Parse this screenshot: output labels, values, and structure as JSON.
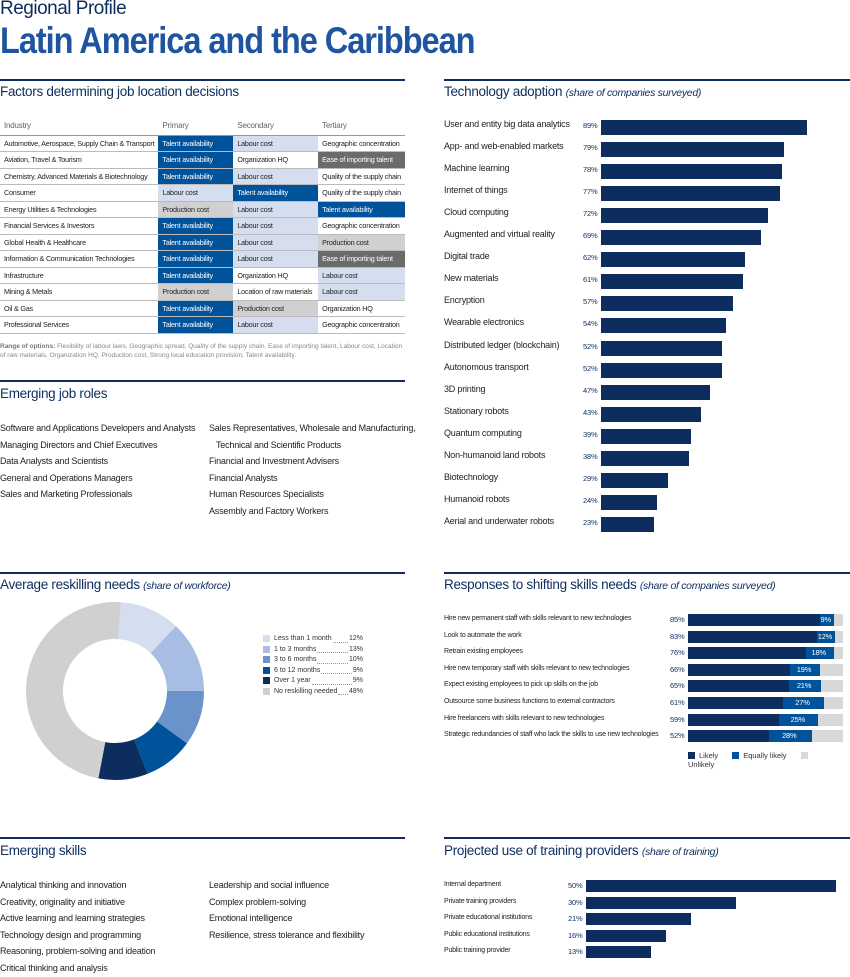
{
  "header": {
    "kicker": "Regional Profile",
    "title": "Latin America and the Caribbean"
  },
  "colors": {
    "navy": "#0d2d5e",
    "blue": "#00529b",
    "light": "#d4deef",
    "gray": "#d0d0d0",
    "dark_gray": "#6b6b6b"
  },
  "factors": {
    "title": "Factors determining job location decisions",
    "columns": [
      "Industry",
      "Primary",
      "Secondary",
      "Tertiary"
    ],
    "rows": [
      {
        "industry": "Automotive, Aerospace, Supply Chain & Transport",
        "primary": "Talent availability",
        "secondary": "Labour cost",
        "tertiary": "Geographic concentration",
        "colors": [
          "blue",
          "light",
          "none"
        ]
      },
      {
        "industry": "Aviation, Travel & Tourism",
        "primary": "Talent availability",
        "secondary": "Organization HQ",
        "tertiary": "Ease of importing talent",
        "colors": [
          "blue",
          "none",
          "dark"
        ]
      },
      {
        "industry": "Chemistry, Advanced Materials & Biotechnology",
        "primary": "Talent availability",
        "secondary": "Labour cost",
        "tertiary": "Quality of the supply chain",
        "colors": [
          "blue",
          "light",
          "none"
        ]
      },
      {
        "industry": "Consumer",
        "primary": "Labour cost",
        "secondary": "Talent availability",
        "tertiary": "Quality of the supply chain",
        "colors": [
          "light",
          "blue",
          "none"
        ]
      },
      {
        "industry": "Energy Utilities & Technologies",
        "primary": "Production cost",
        "secondary": "Labour cost",
        "tertiary": "Talent availability",
        "colors": [
          "gray",
          "light",
          "blue"
        ]
      },
      {
        "industry": "Financial Services & Investors",
        "primary": "Talent availability",
        "secondary": "Labour cost",
        "tertiary": "Geographic concentration",
        "colors": [
          "blue",
          "light",
          "none"
        ]
      },
      {
        "industry": "Global Health & Healthcare",
        "primary": "Talent availability",
        "secondary": "Labour cost",
        "tertiary": "Production cost",
        "colors": [
          "blue",
          "light",
          "gray"
        ]
      },
      {
        "industry": "Information & Communication Technologies",
        "primary": "Talent availability",
        "secondary": "Labour cost",
        "tertiary": "Ease of importing talent",
        "colors": [
          "blue",
          "light",
          "dark"
        ]
      },
      {
        "industry": "Infrastructure",
        "primary": "Talent availability",
        "secondary": "Organization HQ",
        "tertiary": "Labour cost",
        "colors": [
          "blue",
          "none",
          "light"
        ]
      },
      {
        "industry": "Mining & Metals",
        "primary": "Production cost",
        "secondary": "Location of raw materials",
        "tertiary": "Labour cost",
        "colors": [
          "gray",
          "none",
          "light"
        ]
      },
      {
        "industry": "Oil & Gas",
        "primary": "Talent availability",
        "secondary": "Production cost",
        "tertiary": "Organization HQ",
        "colors": [
          "blue",
          "gray",
          "none"
        ]
      },
      {
        "industry": "Professional Services",
        "primary": "Talent availability",
        "secondary": "Labour cost",
        "tertiary": "Geographic concentration",
        "colors": [
          "blue",
          "light",
          "none"
        ]
      }
    ],
    "note_label": "Range of options:",
    "note": "Flexibility of labour laws, Geographic spread, Quality of the supply chain, Ease of importing talent, Labour cost, Location of raw materials, Organization HQ, Production cost, Strong local education provision, Talent availability."
  },
  "roles": {
    "title": "Emerging job roles",
    "col1": [
      "Software and Applications Developers and Analysts",
      "Managing Directors and Chief Executives",
      "Data Analysts and Scientists",
      "General and Operations Managers",
      "Sales and Marketing Professionals"
    ],
    "col2": [
      "Sales Representatives, Wholesale and Manufacturing,",
      "Technical and Scientific Products",
      "Financial and Investment Advisers",
      "Financial Analysts",
      "Human Resources Specialists",
      "Assembly and Factory Workers"
    ]
  },
  "skills": {
    "title": "Emerging skills",
    "col1": [
      "Analytical thinking and innovation",
      "Creativity, originality and initiative",
      "Active learning and learning strategies",
      "Technology design and programming",
      "Reasoning, problem-solving and ideation",
      "Critical thinking and analysis"
    ],
    "col2": [
      "Leadership and social influence",
      "Complex problem-solving",
      "Emotional intelligence",
      "Resilience, stress tolerance and flexibility"
    ]
  },
  "chart_data": [
    {
      "type": "bar",
      "title": "Technology adoption",
      "subtitle": "(share of companies surveyed)",
      "unit": "%",
      "categories": [
        "User and entity big data analytics",
        "App- and web-enabled markets",
        "Machine learning",
        "Internet of things",
        "Cloud computing",
        "Augmented and virtual reality",
        "Digital trade",
        "New materials",
        "Encryption",
        "Wearable electronics",
        "Distributed ledger (blockchain)",
        "Autonomous transport",
        "3D printing",
        "Stationary robots",
        "Quantum computing",
        "Non-humanoid land robots",
        "Biotechnology",
        "Humanoid robots",
        "Aerial and underwater robots"
      ],
      "values": [
        89,
        79,
        78,
        77,
        72,
        69,
        62,
        61,
        57,
        54,
        52,
        52,
        47,
        43,
        39,
        38,
        29,
        24,
        23
      ]
    },
    {
      "type": "pie",
      "title": "Average reskilling needs",
      "subtitle": "(share of workforce)",
      "unit": "%",
      "categories": [
        "Less than 1 month",
        "1 to 3 months",
        "3 to 6 months",
        "6 to 12 months",
        "Over 1 year",
        "No reskilling needed"
      ],
      "values": [
        12,
        13,
        10,
        9,
        9,
        48
      ],
      "colors": [
        "#d4deef",
        "#a7bde3",
        "#6a93cc",
        "#00529b",
        "#0d2d5e",
        "#d0d0d0"
      ]
    },
    {
      "type": "bar",
      "stacked": true,
      "title": "Responses to shifting skills needs",
      "subtitle": "(share of companies surveyed)",
      "unit": "%",
      "categories": [
        "Hire new permanent staff with skills relevant to new technologies",
        "Look to automate the work",
        "Retrain existing employees",
        "Hire new temporary staff with skills relevant to new technologies",
        "Expect existing employees to pick up skills on the job",
        "Outsource some business functions to external contractors",
        "Hire freelancers with skills relevant to new technologies",
        "Strategic redundancies of staff who lack the skills to use new technologies"
      ],
      "series": [
        {
          "name": "Likely",
          "values": [
            85,
            83,
            76,
            66,
            65,
            61,
            59,
            52
          ]
        },
        {
          "name": "Equally likely",
          "values": [
            9,
            12,
            18,
            19,
            21,
            27,
            25,
            28
          ]
        },
        {
          "name": "Unlikely",
          "values": [
            6,
            5,
            6,
            15,
            14,
            12,
            16,
            20
          ]
        }
      ],
      "legend": "bottom"
    },
    {
      "type": "bar",
      "title": "Projected use of training providers",
      "subtitle": "(share of training)",
      "unit": "%",
      "categories": [
        "Internal department",
        "Private training providers",
        "Private educational institutions",
        "Public educational institutions",
        "Public training provider"
      ],
      "values": [
        50,
        30,
        21,
        16,
        13
      ]
    }
  ]
}
